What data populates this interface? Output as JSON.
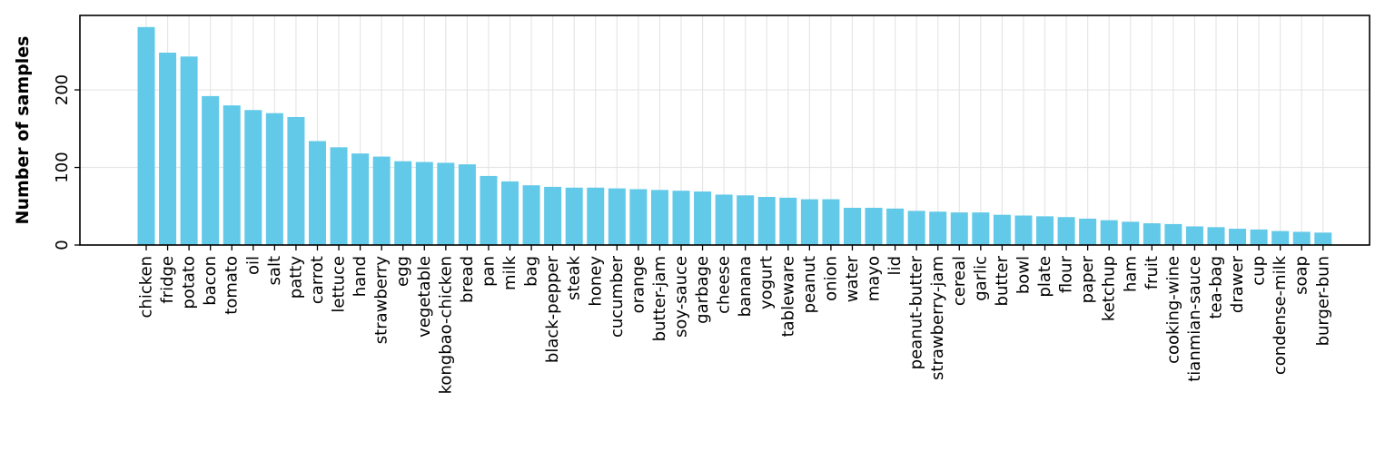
{
  "chart_data": {
    "type": "bar",
    "title": "",
    "xlabel": "",
    "ylabel": "Number of samples",
    "ylim": [
      0,
      296
    ],
    "yticks": [
      0,
      100,
      200
    ],
    "grid": true,
    "categories": [
      "chicken",
      "fridge",
      "potato",
      "bacon",
      "tomato",
      "oil",
      "salt",
      "patty",
      "carrot",
      "lettuce",
      "hand",
      "strawberry",
      "egg",
      "vegetable",
      "kongbao-chicken",
      "bread",
      "pan",
      "milk",
      "bag",
      "black-pepper",
      "steak",
      "honey",
      "cucumber",
      "orange",
      "butter-jam",
      "soy-sauce",
      "garbage",
      "cheese",
      "banana",
      "yogurt",
      "tableware",
      "peanut",
      "onion",
      "water",
      "mayo",
      "lid",
      "peanut-butter",
      "strawberry-jam",
      "cereal",
      "garlic",
      "butter",
      "bowl",
      "plate",
      "flour",
      "paper",
      "ketchup",
      "ham",
      "fruit",
      "cooking-wine",
      "tianmian-sauce",
      "tea-bag",
      "drawer",
      "cup",
      "condense-milk",
      "soap",
      "burger-bun"
    ],
    "values": [
      281,
      248,
      243,
      192,
      180,
      174,
      170,
      165,
      134,
      126,
      118,
      114,
      108,
      107,
      106,
      104,
      89,
      82,
      77,
      75,
      74,
      74,
      73,
      72,
      71,
      70,
      69,
      65,
      64,
      62,
      61,
      59,
      59,
      48,
      48,
      47,
      44,
      43,
      42,
      42,
      39,
      38,
      37,
      36,
      34,
      32,
      30,
      28,
      27,
      24,
      23,
      21,
      20,
      18,
      17,
      16
    ],
    "colors": {
      "bar": "#62c9e8",
      "grid": "#e6e6e6",
      "axis": "#000000"
    }
  }
}
